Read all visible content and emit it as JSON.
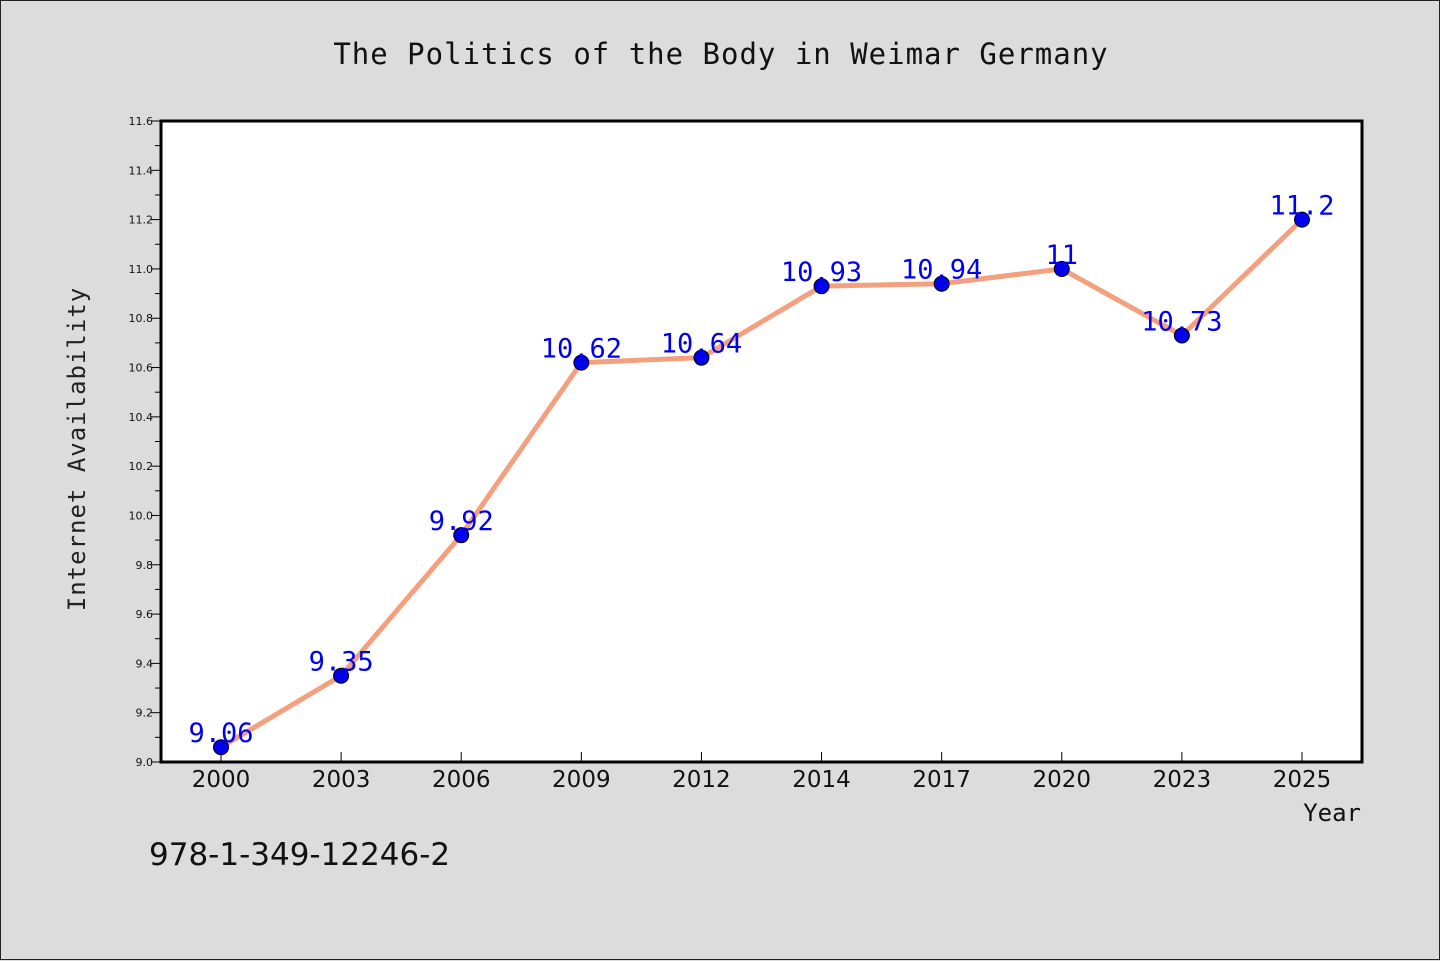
{
  "chart_data": {
    "type": "line",
    "title": "The Politics of the Body in Weimar Germany",
    "xlabel": "Year",
    "ylabel": "Internet Availability",
    "categories": [
      "2000",
      "2003",
      "2006",
      "2009",
      "2012",
      "2014",
      "2017",
      "2020",
      "2023",
      "2025"
    ],
    "series": [
      {
        "values": [
          9.06,
          9.35,
          9.92,
          10.62,
          10.64,
          10.93,
          10.94,
          11,
          10.73,
          11.2
        ],
        "line_color": "#f4a07f",
        "marker_color": "#0000ee",
        "label_color": "#0000ee"
      }
    ],
    "data_labels": [
      "9.06",
      "9.35",
      "9.92",
      "10.62",
      "10.64",
      "10.93",
      "10.94",
      "11",
      "10.73",
      "11.2"
    ],
    "ylim": [
      9.0,
      11.6
    ],
    "yticks": [
      "9.0",
      "9.2",
      "9.4",
      "9.6",
      "9.8",
      "10.0",
      "10.2",
      "10.4",
      "10.6",
      "10.8",
      "11.0",
      "11.2",
      "11.4",
      "11.6"
    ],
    "grid": false,
    "legend": "none"
  },
  "footer": {
    "isbn": "978-1-349-12246-2"
  }
}
